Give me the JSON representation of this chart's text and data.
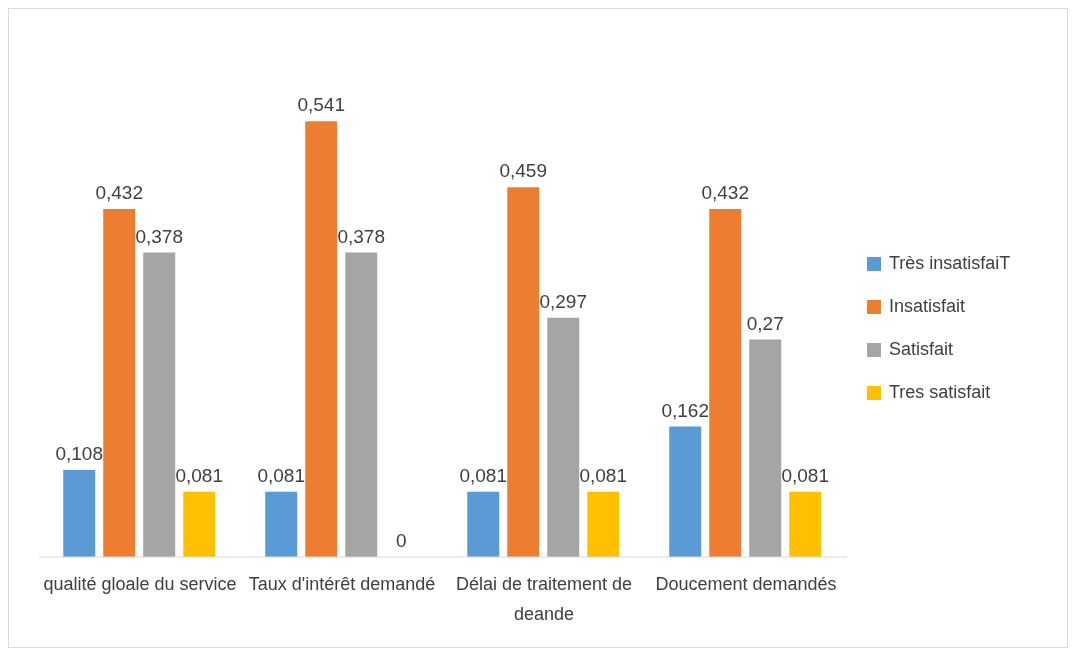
{
  "chart_data": {
    "type": "bar",
    "categories": [
      "qualité gloale du service",
      "Taux d'intérêt demandé",
      "Délai de traitement de deande",
      "Doucement demandés"
    ],
    "series": [
      {
        "name": "Très insatisfaiT",
        "color": "#5b9bd5",
        "values": [
          0.108,
          0.081,
          0.081,
          0.162
        ],
        "value_labels": [
          "0,108",
          "0,081",
          "0,081",
          "0,162"
        ]
      },
      {
        "name": "Insatisfait",
        "color": "#ed7d31",
        "values": [
          0.432,
          0.541,
          0.459,
          0.432
        ],
        "value_labels": [
          "0,432",
          "0,541",
          "0,459",
          "0,432"
        ]
      },
      {
        "name": "Satisfait",
        "color": "#a5a5a5",
        "values": [
          0.378,
          0.378,
          0.297,
          0.27
        ],
        "value_labels": [
          "0,378",
          "0,378",
          "0,297",
          "0,27"
        ]
      },
      {
        "name": "Tres satisfait",
        "color": "#ffc000",
        "values": [
          0.081,
          0,
          0.081,
          0.081
        ],
        "value_labels": [
          "0,081",
          "0",
          "0,081",
          "0,081"
        ]
      }
    ],
    "grid": false,
    "legend": "right"
  }
}
